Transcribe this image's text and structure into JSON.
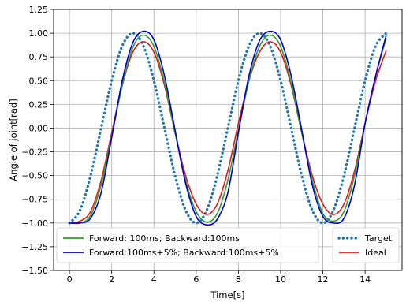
{
  "chart_data": {
    "type": "line",
    "title": "",
    "xlabel": "Time[s]",
    "ylabel": "Angle of joint[rad]",
    "xlim": [
      -0.75,
      15.75
    ],
    "ylim": [
      -1.5,
      1.25
    ],
    "xticks": [
      0,
      2,
      4,
      6,
      8,
      10,
      12,
      14
    ],
    "xtick_labels": [
      "0",
      "2",
      "4",
      "6",
      "8",
      "10",
      "12",
      "14"
    ],
    "yticks": [
      -1.5,
      -1.25,
      -1.0,
      -0.75,
      -0.5,
      -0.25,
      0.0,
      0.25,
      0.5,
      0.75,
      1.0,
      1.25
    ],
    "ytick_labels": [
      "−1.50",
      "−1.25",
      "−1.00",
      "−0.75",
      "−0.50",
      "−0.25",
      "0.00",
      "0.25",
      "0.50",
      "0.75",
      "1.00",
      "1.25"
    ],
    "grid": true,
    "legends": [
      {
        "placement": "lower-left",
        "entries": [
          "Forward: 100ms; Backward:100ms",
          "Forward:100ms+5%; Backward:100ms+5%"
        ]
      },
      {
        "placement": "lower-right",
        "entries": [
          "Target",
          "Ideal"
        ]
      }
    ],
    "series": [
      {
        "name": "Target",
        "color": "#1f77b4",
        "style": "dotted",
        "x": [
          0,
          0.5,
          1,
          1.5,
          2,
          2.5,
          3,
          3.5,
          4,
          4.5,
          5,
          5.5,
          6,
          6.5,
          7,
          7.5,
          8,
          8.5,
          9,
          9.5,
          10,
          10.5,
          11,
          11.5,
          12,
          12.5,
          13,
          13.5,
          14,
          14.5,
          15
        ],
        "y": [
          -1.0,
          -0.866,
          -0.5,
          0.0,
          0.5,
          0.866,
          1.0,
          0.866,
          0.5,
          0.0,
          -0.5,
          -0.866,
          -1.0,
          -0.866,
          -0.5,
          0.0,
          0.5,
          0.866,
          1.0,
          0.866,
          0.5,
          0.0,
          -0.5,
          -0.866,
          -1.0,
          -0.866,
          -0.5,
          0.0,
          0.5,
          0.866,
          1.0
        ]
      },
      {
        "name": "Ideal",
        "color": "#e41a1c",
        "style": "solid",
        "x": [
          0,
          0.5,
          1,
          1.5,
          2,
          2.5,
          3,
          3.5,
          4,
          4.5,
          5,
          5.5,
          6,
          6.5,
          7,
          7.5,
          8,
          8.5,
          9,
          9.5,
          10,
          10.5,
          11,
          11.5,
          12,
          12.5,
          13,
          13.5,
          14,
          14.5,
          15
        ],
        "y": [
          -1.0,
          -0.98,
          -0.88,
          -0.55,
          -0.05,
          0.45,
          0.8,
          0.91,
          0.8,
          0.45,
          -0.05,
          -0.5,
          -0.8,
          -0.91,
          -0.8,
          -0.45,
          0.05,
          0.5,
          0.8,
          0.91,
          0.8,
          0.45,
          -0.05,
          -0.5,
          -0.8,
          -0.91,
          -0.8,
          -0.45,
          0.05,
          0.5,
          0.82
        ]
      },
      {
        "name": "Forward: 100ms; Backward:100ms",
        "color": "#2ca02c",
        "style": "solid",
        "x": [
          0,
          0.5,
          1,
          1.5,
          2,
          2.5,
          3,
          3.5,
          4,
          4.5,
          5,
          5.5,
          6,
          6.5,
          7,
          7.5,
          8,
          8.5,
          9,
          9.5,
          10,
          10.5,
          11,
          11.5,
          12,
          12.5,
          13,
          13.5,
          14,
          14.5,
          15
        ],
        "y": [
          -1.0,
          -1.0,
          -0.92,
          -0.6,
          -0.08,
          0.45,
          0.85,
          0.98,
          0.86,
          0.48,
          -0.05,
          -0.55,
          -0.88,
          -0.99,
          -0.9,
          -0.55,
          -0.02,
          0.5,
          0.86,
          0.98,
          0.86,
          0.48,
          -0.05,
          -0.55,
          -0.9,
          -0.98,
          -0.88,
          -0.5,
          0.05,
          0.55,
          0.95
        ]
      },
      {
        "name": "Forward:100ms+5%; Backward:100ms+5%",
        "color": "#0000cc",
        "style": "solid",
        "x": [
          0,
          0.5,
          1,
          1.5,
          2,
          2.5,
          3,
          3.5,
          4,
          4.5,
          5,
          5.5,
          6,
          6.5,
          7,
          7.5,
          8,
          8.5,
          9,
          9.5,
          10,
          10.5,
          11,
          11.5,
          12,
          12.5,
          13,
          13.5,
          14,
          14.5,
          15
        ],
        "y": [
          -1.0,
          -1.0,
          -0.95,
          -0.68,
          -0.1,
          0.5,
          0.9,
          1.02,
          0.93,
          0.55,
          -0.02,
          -0.58,
          -0.93,
          -1.02,
          -0.96,
          -0.68,
          -0.05,
          0.55,
          0.92,
          1.02,
          0.93,
          0.55,
          -0.02,
          -0.6,
          -0.93,
          -1.0,
          -0.95,
          -0.6,
          0.05,
          0.55,
          0.98
        ]
      }
    ]
  }
}
